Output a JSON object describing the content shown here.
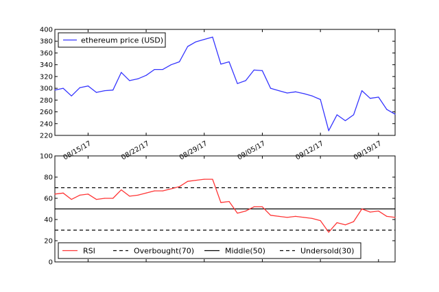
{
  "chart_data": [
    {
      "type": "line",
      "x": [
        "08/11/17",
        "08/12/17",
        "08/13/17",
        "08/14/17",
        "08/15/17",
        "08/16/17",
        "08/17/17",
        "08/18/17",
        "08/19/17",
        "08/20/17",
        "08/21/17",
        "08/22/17",
        "08/23/17",
        "08/24/17",
        "08/25/17",
        "08/26/17",
        "08/27/17",
        "08/28/17",
        "08/29/17",
        "08/30/17",
        "08/31/17",
        "09/01/17",
        "09/02/17",
        "09/03/17",
        "09/04/17",
        "09/05/17",
        "09/06/17",
        "09/07/17",
        "09/08/17",
        "09/09/17",
        "09/10/17",
        "09/11/17",
        "09/12/17",
        "09/13/17",
        "09/14/17",
        "09/15/17",
        "09/16/17",
        "09/17/17",
        "09/18/17",
        "09/19/17",
        "09/20/17",
        "09/21/17"
      ],
      "series": [
        {
          "name": "ethereum price (USD)",
          "color": "#3333ff",
          "values": [
            297,
            300,
            287,
            301,
            304,
            293,
            296,
            297,
            327,
            313,
            316,
            322,
            332,
            332,
            340,
            345,
            371,
            379,
            383,
            387,
            341,
            345,
            308,
            313,
            331,
            330,
            300,
            296,
            292,
            294,
            291,
            287,
            281,
            228,
            255,
            245,
            255,
            296,
            283,
            285,
            264,
            256
          ]
        }
      ],
      "ylim": [
        220,
        400
      ],
      "yticks": [
        220,
        240,
        260,
        280,
        300,
        320,
        340,
        360,
        380,
        400
      ],
      "xtick_labels": [
        "08/15/17",
        "08/22/17",
        "08/29/17",
        "09/05/17",
        "09/12/17",
        "09/19/17"
      ],
      "legend": "top-left"
    },
    {
      "type": "line",
      "x": [
        "08/11/17",
        "08/12/17",
        "08/13/17",
        "08/14/17",
        "08/15/17",
        "08/16/17",
        "08/17/17",
        "08/18/17",
        "08/19/17",
        "08/20/17",
        "08/21/17",
        "08/22/17",
        "08/23/17",
        "08/24/17",
        "08/25/17",
        "08/26/17",
        "08/27/17",
        "08/28/17",
        "08/29/17",
        "08/30/17",
        "08/31/17",
        "09/01/17",
        "09/02/17",
        "09/03/17",
        "09/04/17",
        "09/05/17",
        "09/06/17",
        "09/07/17",
        "09/08/17",
        "09/09/17",
        "09/10/17",
        "09/11/17",
        "09/12/17",
        "09/13/17",
        "09/14/17",
        "09/15/17",
        "09/16/17",
        "09/17/17",
        "09/18/17",
        "09/19/17",
        "09/20/17",
        "09/21/17"
      ],
      "series": [
        {
          "name": "RSI",
          "color": "#ff3333",
          "values": [
            64,
            65,
            59,
            63,
            64,
            59,
            60,
            60,
            68,
            62,
            63,
            65,
            67,
            67,
            69,
            71,
            76,
            77,
            78,
            78,
            56,
            57,
            46,
            48,
            52,
            52,
            44,
            43,
            42,
            43,
            42,
            41,
            39,
            28,
            37,
            35,
            38,
            50,
            47,
            48,
            43,
            42
          ]
        }
      ],
      "reference_lines": [
        {
          "name": "Overbought(70)",
          "value": 70,
          "style": "dashed",
          "color": "#000000"
        },
        {
          "name": "Middle(50)",
          "value": 50,
          "style": "solid",
          "color": "#000000"
        },
        {
          "name": "Undersold(30)",
          "value": 30,
          "style": "dashed",
          "color": "#000000"
        }
      ],
      "ylim": [
        0,
        100
      ],
      "yticks": [
        0,
        20,
        40,
        60,
        80,
        100
      ],
      "legend": "bottom-left"
    }
  ]
}
